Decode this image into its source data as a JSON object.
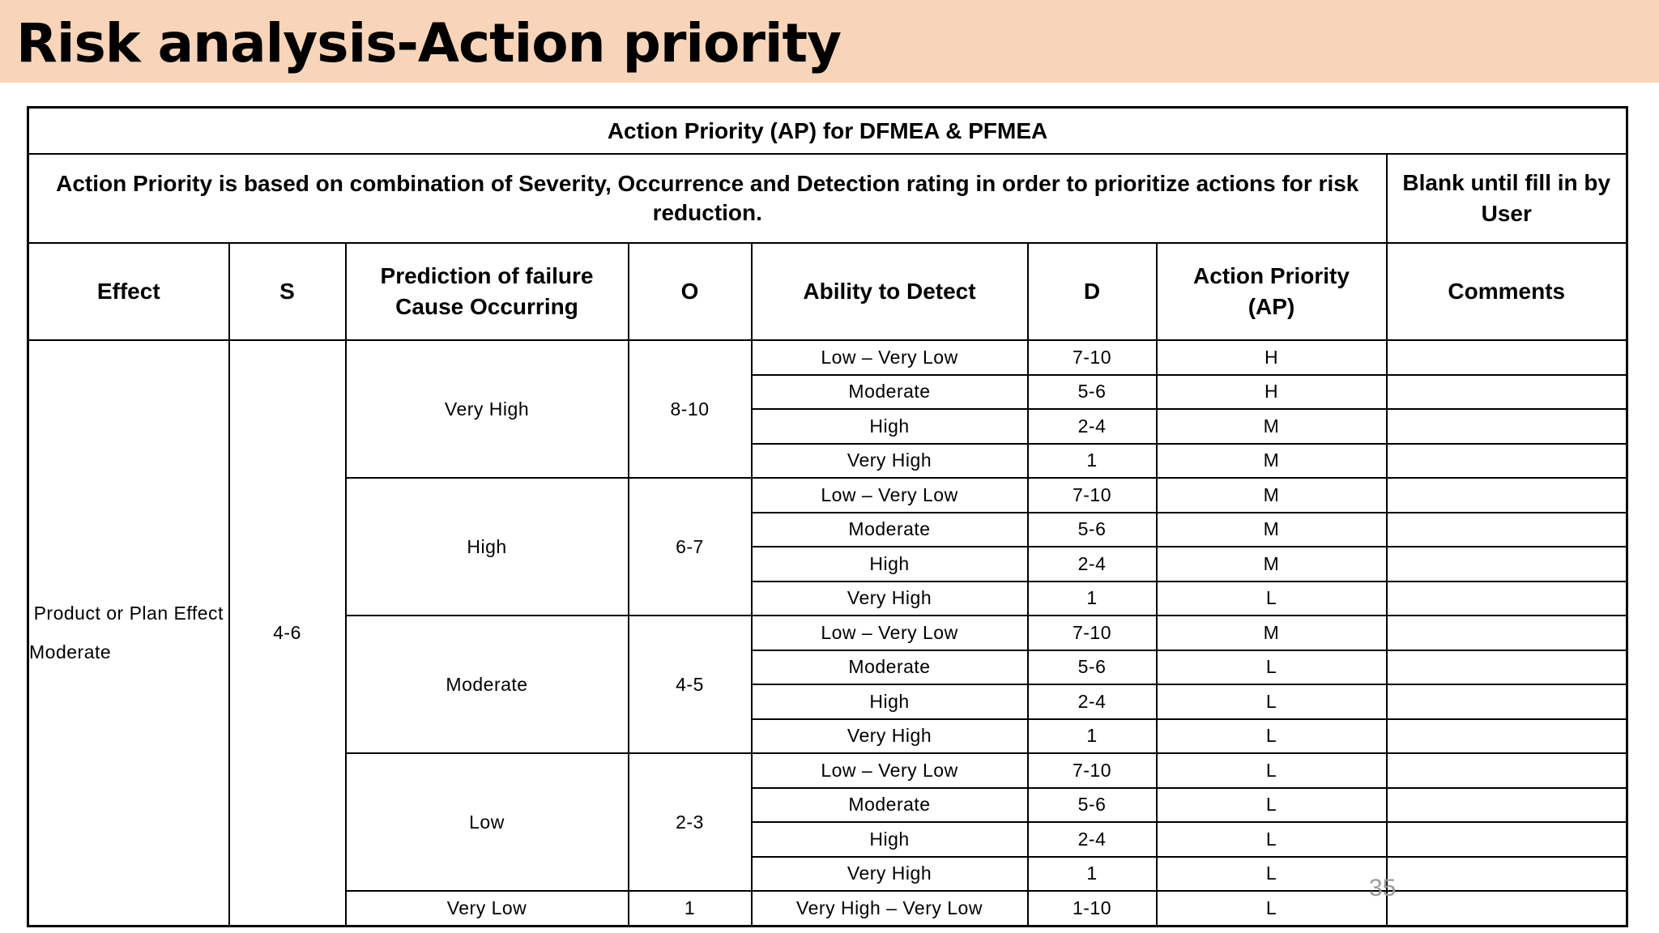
{
  "title": "Risk analysis-Action priority",
  "table": {
    "caption": "Action Priority (AP) for DFMEA & PFMEA",
    "description": "Action Priority is based on combination of Severity, Occurrence and Detection rating in order to prioritize actions for risk reduction.",
    "blank_note": "Blank until fill in by User",
    "headers": [
      "Effect",
      "S",
      "Prediction of failure Cause Occurring",
      "O",
      "Ability to Detect",
      "D",
      "Action Priority (AP)",
      "Comments"
    ],
    "effect": "Product or Plan Effect Moderate",
    "severity": "4-6",
    "groups": [
      {
        "prediction": "Very High",
        "o": "8-10",
        "rows": [
          {
            "detect": "Low – Very Low",
            "d": "7-10",
            "ap": "H"
          },
          {
            "detect": "Moderate",
            "d": "5-6",
            "ap": "H"
          },
          {
            "detect": "High",
            "d": "2-4",
            "ap": "M"
          },
          {
            "detect": "Very High",
            "d": "1",
            "ap": "M"
          }
        ]
      },
      {
        "prediction": "High",
        "o": "6-7",
        "rows": [
          {
            "detect": "Low – Very Low",
            "d": "7-10",
            "ap": "M"
          },
          {
            "detect": "Moderate",
            "d": "5-6",
            "ap": "M"
          },
          {
            "detect": "High",
            "d": "2-4",
            "ap": "M"
          },
          {
            "detect": "Very High",
            "d": "1",
            "ap": "L"
          }
        ]
      },
      {
        "prediction": "Moderate",
        "o": "4-5",
        "rows": [
          {
            "detect": "Low – Very Low",
            "d": "7-10",
            "ap": "M"
          },
          {
            "detect": "Moderate",
            "d": "5-6",
            "ap": "L"
          },
          {
            "detect": "High",
            "d": "2-4",
            "ap": "L"
          },
          {
            "detect": "Very High",
            "d": "1",
            "ap": "L"
          }
        ]
      },
      {
        "prediction": "Low",
        "o": "2-3",
        "rows": [
          {
            "detect": "Low – Very Low",
            "d": "7-10",
            "ap": "L"
          },
          {
            "detect": "Moderate",
            "d": "5-6",
            "ap": "L"
          },
          {
            "detect": "High",
            "d": "2-4",
            "ap": "L"
          },
          {
            "detect": "Very High",
            "d": "1",
            "ap": "L"
          }
        ]
      },
      {
        "prediction": "Very Low",
        "o": "1",
        "rows": [
          {
            "detect": "Very High – Very Low",
            "d": "1-10",
            "ap": "L"
          }
        ]
      }
    ]
  },
  "page_number": "35"
}
